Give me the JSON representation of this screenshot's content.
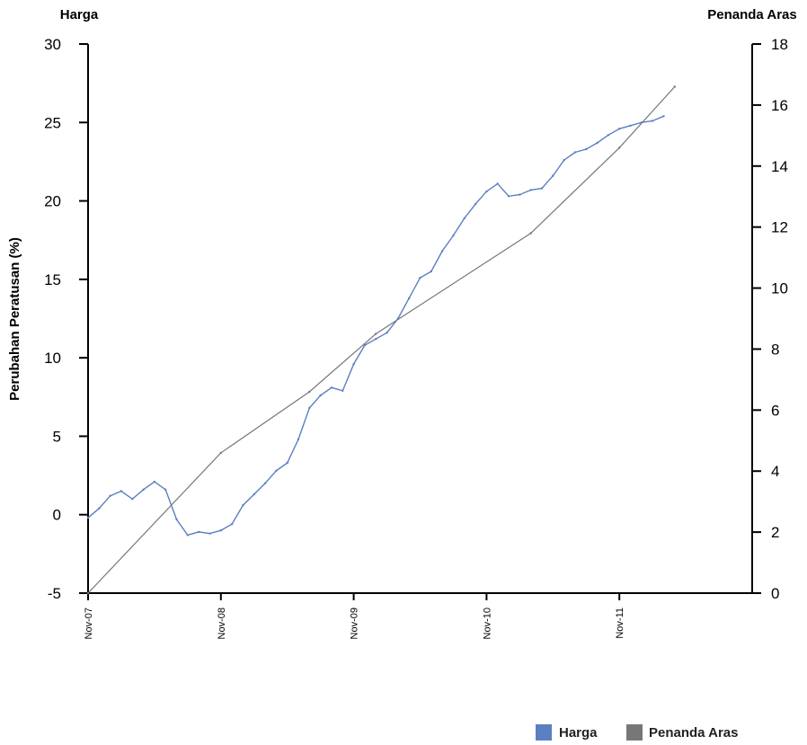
{
  "chart_data": {
    "type": "line",
    "left_axis": {
      "title": "Harga",
      "label": "Perubahan Peratusan (%)",
      "range": [
        -5,
        30
      ],
      "ticks": [
        "30",
        "25",
        "20",
        "15",
        "10",
        "5",
        "0",
        "-5"
      ]
    },
    "right_axis": {
      "title": "Penanda Aras",
      "range": [
        0,
        18
      ],
      "ticks": [
        "18",
        "16",
        "14",
        "12",
        "10",
        "8",
        "6",
        "4",
        "2",
        "0"
      ]
    },
    "x_axis": {
      "range": [
        "2007-11",
        "2012-11"
      ],
      "ticks": [
        "Nov-07",
        "Nov-08",
        "Nov-09",
        "Nov-10",
        "Nov-11"
      ]
    },
    "grid": false,
    "legend_position": "bottom-right",
    "series": [
      {
        "name": "Harga",
        "axis": "left",
        "color": "#5b7fc0",
        "points": [
          [
            "2007-11",
            -0.2
          ],
          [
            "2007-12",
            0.4
          ],
          [
            "2008-01",
            1.2
          ],
          [
            "2008-02",
            1.5
          ],
          [
            "2008-03",
            1.0
          ],
          [
            "2008-04",
            1.6
          ],
          [
            "2008-05",
            2.1
          ],
          [
            "2008-06",
            1.6
          ],
          [
            "2008-07",
            -0.3
          ],
          [
            "2008-08",
            -1.3
          ],
          [
            "2008-09",
            -1.1
          ],
          [
            "2008-10",
            -1.2
          ],
          [
            "2008-11",
            -1.0
          ],
          [
            "2008-12",
            -0.6
          ],
          [
            "2009-01",
            0.6
          ],
          [
            "2009-02",
            1.3
          ],
          [
            "2009-03",
            2.0
          ],
          [
            "2009-04",
            2.8
          ],
          [
            "2009-05",
            3.3
          ],
          [
            "2009-06",
            4.8
          ],
          [
            "2009-07",
            6.8
          ],
          [
            "2009-08",
            7.6
          ],
          [
            "2009-09",
            8.1
          ],
          [
            "2009-10",
            7.9
          ],
          [
            "2009-11",
            9.6
          ],
          [
            "2009-12",
            10.8
          ],
          [
            "2010-01",
            11.2
          ],
          [
            "2010-02",
            11.6
          ],
          [
            "2010-03",
            12.5
          ],
          [
            "2010-04",
            13.8
          ],
          [
            "2010-05",
            15.1
          ],
          [
            "2010-06",
            15.5
          ],
          [
            "2010-07",
            16.8
          ],
          [
            "2010-08",
            17.8
          ],
          [
            "2010-09",
            18.9
          ],
          [
            "2010-10",
            19.8
          ],
          [
            "2010-11",
            20.6
          ],
          [
            "2010-12",
            21.1
          ],
          [
            "2011-01",
            20.3
          ],
          [
            "2011-02",
            20.4
          ],
          [
            "2011-03",
            20.7
          ],
          [
            "2011-04",
            20.8
          ],
          [
            "2011-05",
            21.6
          ],
          [
            "2011-06",
            22.6
          ],
          [
            "2011-07",
            23.1
          ],
          [
            "2011-08",
            23.3
          ],
          [
            "2011-09",
            23.7
          ],
          [
            "2011-10",
            24.2
          ],
          [
            "2011-11",
            24.6
          ],
          [
            "2011-12",
            24.8
          ],
          [
            "2012-01",
            25.0
          ],
          [
            "2012-02",
            25.1
          ],
          [
            "2012-03",
            25.4
          ]
        ]
      },
      {
        "name": "Penanda Aras",
        "axis": "right",
        "color": "#777777",
        "points": [
          [
            "2007-11",
            0.0
          ],
          [
            "2008-11",
            4.6
          ],
          [
            "2009-07",
            6.6
          ],
          [
            "2010-01",
            8.5
          ],
          [
            "2011-03",
            11.8
          ],
          [
            "2011-11",
            14.6
          ],
          [
            "2012-04",
            16.6
          ]
        ]
      }
    ]
  }
}
